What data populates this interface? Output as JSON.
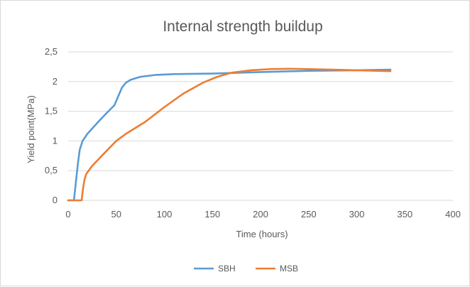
{
  "chart_data": {
    "type": "line",
    "title": "Internal strength buildup",
    "xlabel": "Time (hours)",
    "ylabel": "Yield point(MPa)",
    "xlim": [
      0,
      400
    ],
    "ylim": [
      0,
      2.5
    ],
    "x_ticks": [
      "0",
      "50",
      "100",
      "150",
      "200",
      "250",
      "300",
      "350",
      "400"
    ],
    "y_ticks": [
      "0",
      "0,5",
      "1",
      "1,5",
      "2",
      "2,5"
    ],
    "grid": true,
    "legend_position": "bottom",
    "series": [
      {
        "name": "SBH",
        "color": "#5b9bd5",
        "points": [
          [
            0,
            0
          ],
          [
            6,
            0
          ],
          [
            8,
            0.3
          ],
          [
            10,
            0.6
          ],
          [
            12,
            0.85
          ],
          [
            15,
            1.0
          ],
          [
            20,
            1.12
          ],
          [
            30,
            1.3
          ],
          [
            40,
            1.47
          ],
          [
            48,
            1.6
          ],
          [
            52,
            1.75
          ],
          [
            56,
            1.9
          ],
          [
            60,
            1.98
          ],
          [
            65,
            2.03
          ],
          [
            75,
            2.08
          ],
          [
            90,
            2.11
          ],
          [
            110,
            2.125
          ],
          [
            150,
            2.135
          ],
          [
            200,
            2.16
          ],
          [
            250,
            2.18
          ],
          [
            300,
            2.19
          ],
          [
            335,
            2.2
          ]
        ]
      },
      {
        "name": "MSB",
        "color": "#ed7d31",
        "points": [
          [
            0,
            0
          ],
          [
            14,
            0
          ],
          [
            15.5,
            0.2
          ],
          [
            17,
            0.35
          ],
          [
            19,
            0.45
          ],
          [
            25,
            0.58
          ],
          [
            35,
            0.75
          ],
          [
            50,
            1.0
          ],
          [
            60,
            1.12
          ],
          [
            70,
            1.22
          ],
          [
            80,
            1.32
          ],
          [
            100,
            1.57
          ],
          [
            120,
            1.8
          ],
          [
            140,
            1.98
          ],
          [
            155,
            2.08
          ],
          [
            170,
            2.15
          ],
          [
            190,
            2.19
          ],
          [
            210,
            2.21
          ],
          [
            230,
            2.215
          ],
          [
            250,
            2.21
          ],
          [
            275,
            2.2
          ],
          [
            300,
            2.19
          ],
          [
            320,
            2.18
          ],
          [
            335,
            2.175
          ]
        ]
      }
    ]
  }
}
